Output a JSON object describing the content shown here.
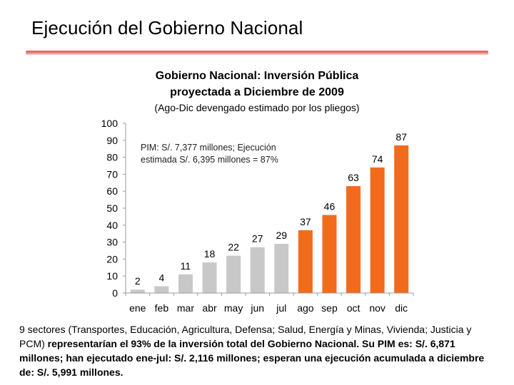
{
  "slide": {
    "title": "Ejecución del Gobierno Nacional"
  },
  "colors": {
    "rule": "#d9534f",
    "executed": "#c8c8c8",
    "projected": "#f26b1d",
    "axis": "#999999",
    "text": "#000000"
  },
  "chart_data": {
    "type": "bar",
    "title_line1": "Gobierno Nacional: Inversión Pública",
    "title_line2": "proyectada a Diciembre de 2009",
    "subtitle": "(Ago-Dic devengado estimado por los pliegos)",
    "categories": [
      "ene",
      "feb",
      "mar",
      "abr",
      "may",
      "jun",
      "jul",
      "ago",
      "sep",
      "oct",
      "nov",
      "dic"
    ],
    "values": [
      2,
      4,
      11,
      18,
      22,
      27,
      29,
      37,
      46,
      63,
      74,
      87
    ],
    "value_labels": [
      "2",
      "4",
      "11",
      "18",
      "22",
      "27",
      "29",
      "37",
      "46",
      "63",
      "74",
      "87"
    ],
    "series_type": [
      "executed",
      "executed",
      "executed",
      "executed",
      "executed",
      "executed",
      "executed",
      "projected",
      "projected",
      "projected",
      "projected",
      "projected"
    ],
    "yticks": [
      "0",
      "10",
      "20",
      "30",
      "40",
      "50",
      "60",
      "70",
      "80",
      "90",
      "100"
    ],
    "ylim": [
      0,
      100
    ],
    "xlabel": "",
    "ylabel": "",
    "grid": false,
    "annotation_line1": "PIM: S/. 7,377 millones; Ejecución",
    "annotation_line2": "estimada S/. 6,395 millones = 87%"
  },
  "footer": {
    "normal_1": "9 sectores (Transportes, Educación, Agricultura, Defensa; Salud, Energía y Minas, Vivienda; Justicia y PCM) ",
    "bold_1": "representarían el 93% de la inversión total del Gobierno Nacional. Su PIM es: S/. 6,871 millones; han ejecutado ene-jul: S/. 2,116 millones; esperan una ejecución acumulada a diciembre de: S/. 5,991 millones."
  }
}
